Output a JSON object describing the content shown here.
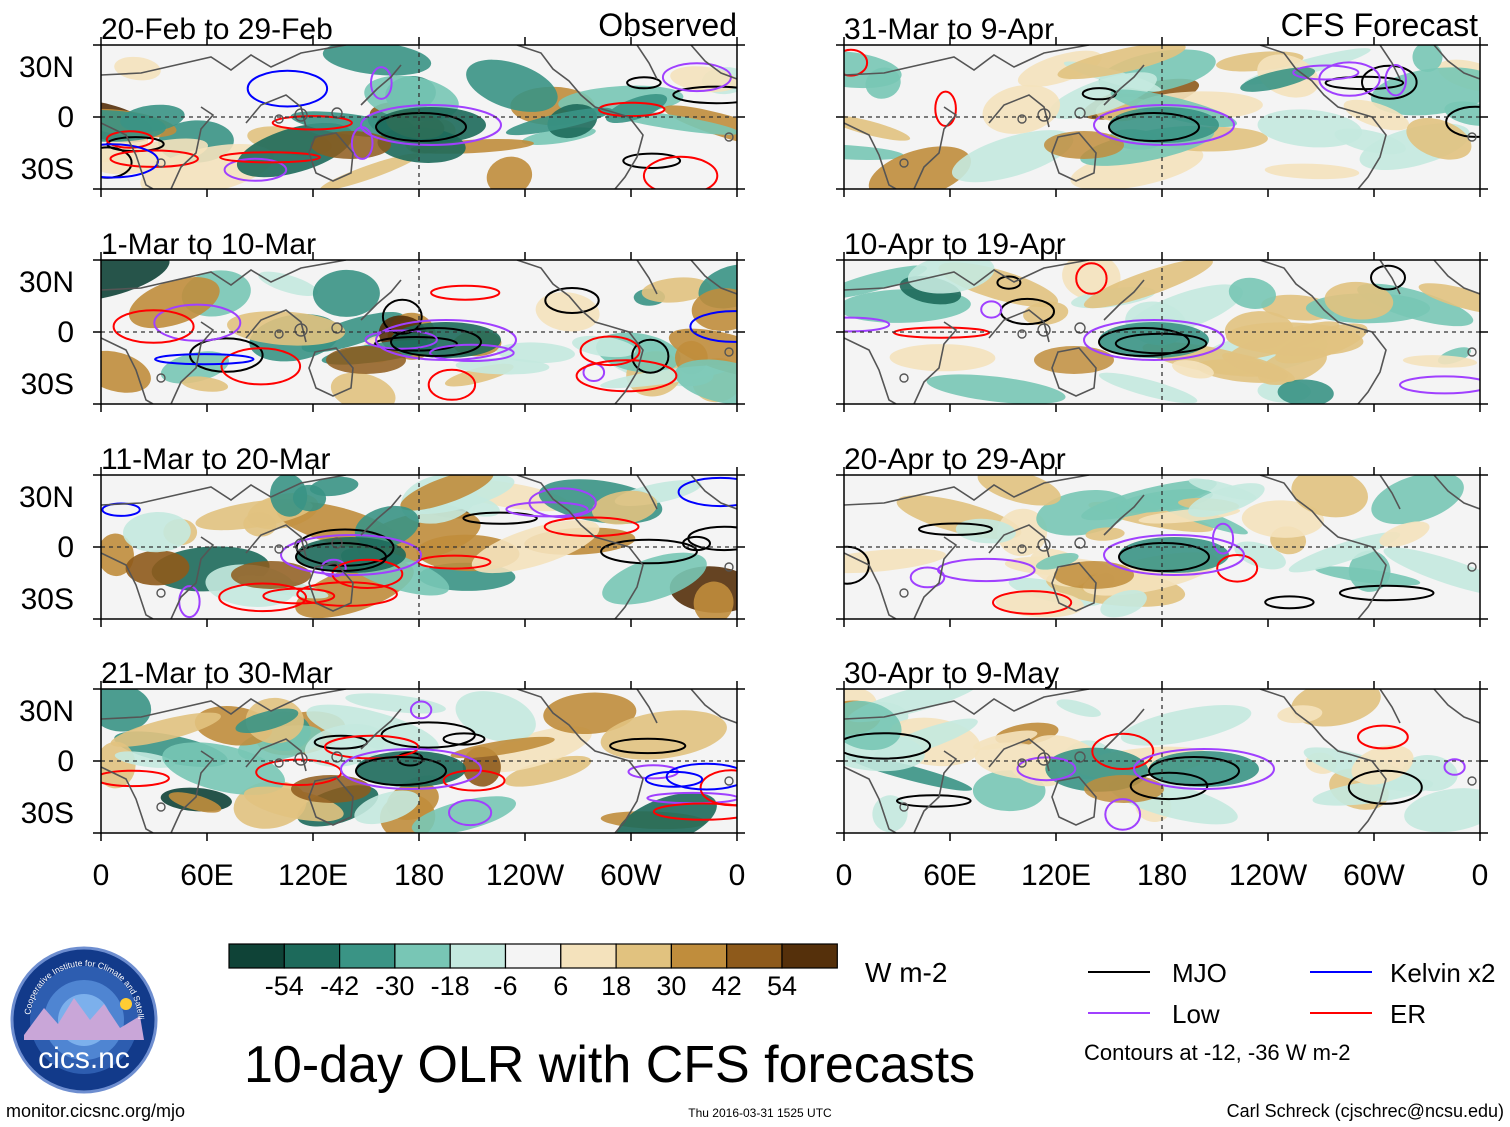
{
  "chart_data": {
    "type": "heatmap",
    "title": "10-day OLR with CFS forecasts",
    "headers": {
      "observed": "Observed",
      "forecast": "CFS Forecast"
    },
    "panels": [
      {
        "period": "20-Feb to 29-Feb",
        "source": "Observed"
      },
      {
        "period": "1-Mar to 10-Mar",
        "source": "Observed"
      },
      {
        "period": "11-Mar to 20-Mar",
        "source": "Observed"
      },
      {
        "period": "21-Mar to 30-Mar",
        "source": "Observed"
      },
      {
        "period": "31-Mar to 9-Apr",
        "source": "CFS Forecast"
      },
      {
        "period": "10-Apr to 19-Apr",
        "source": "CFS Forecast"
      },
      {
        "period": "20-Apr to 29-Apr",
        "source": "CFS Forecast"
      },
      {
        "period": "30-Apr to 9-May",
        "source": "CFS Forecast"
      }
    ],
    "x_ticks": [
      "0",
      "60E",
      "120E",
      "180",
      "120W",
      "60W",
      "0"
    ],
    "y_ticks": [
      "30N",
      "0",
      "30S"
    ],
    "colorbar": {
      "unit": "W m-2",
      "tick_labels": [
        "-54",
        "-42",
        "-30",
        "-18",
        "-6",
        "6",
        "18",
        "30",
        "42",
        "54"
      ],
      "colors": [
        "#0f4337",
        "#1d6a5b",
        "#3a9485",
        "#78c6b5",
        "#c4e9df",
        "#f4f4f4",
        "#f4e2bc",
        "#e1c27f",
        "#c08d3c",
        "#8e5a1b",
        "#55300b"
      ]
    },
    "legend": [
      {
        "label": "MJO",
        "color": "#000000"
      },
      {
        "label": "Kelvin x2",
        "color": "#0000ff"
      },
      {
        "label": "Low",
        "color": "#a040ff"
      },
      {
        "label": "ER",
        "color": "#ff0000"
      }
    ],
    "contour_note": "Contours at -12, -36 W m-2"
  },
  "footer": {
    "left": "monitor.cicsnc.org/mjo",
    "center": "Thu 2016-03-31 1525 UTC",
    "right": "Carl Schreck (cjschrec@ncsu.edu)"
  },
  "logo": {
    "text": "cics.nc",
    "ring_text": "Cooperative Institute for Climate and Satellites"
  }
}
